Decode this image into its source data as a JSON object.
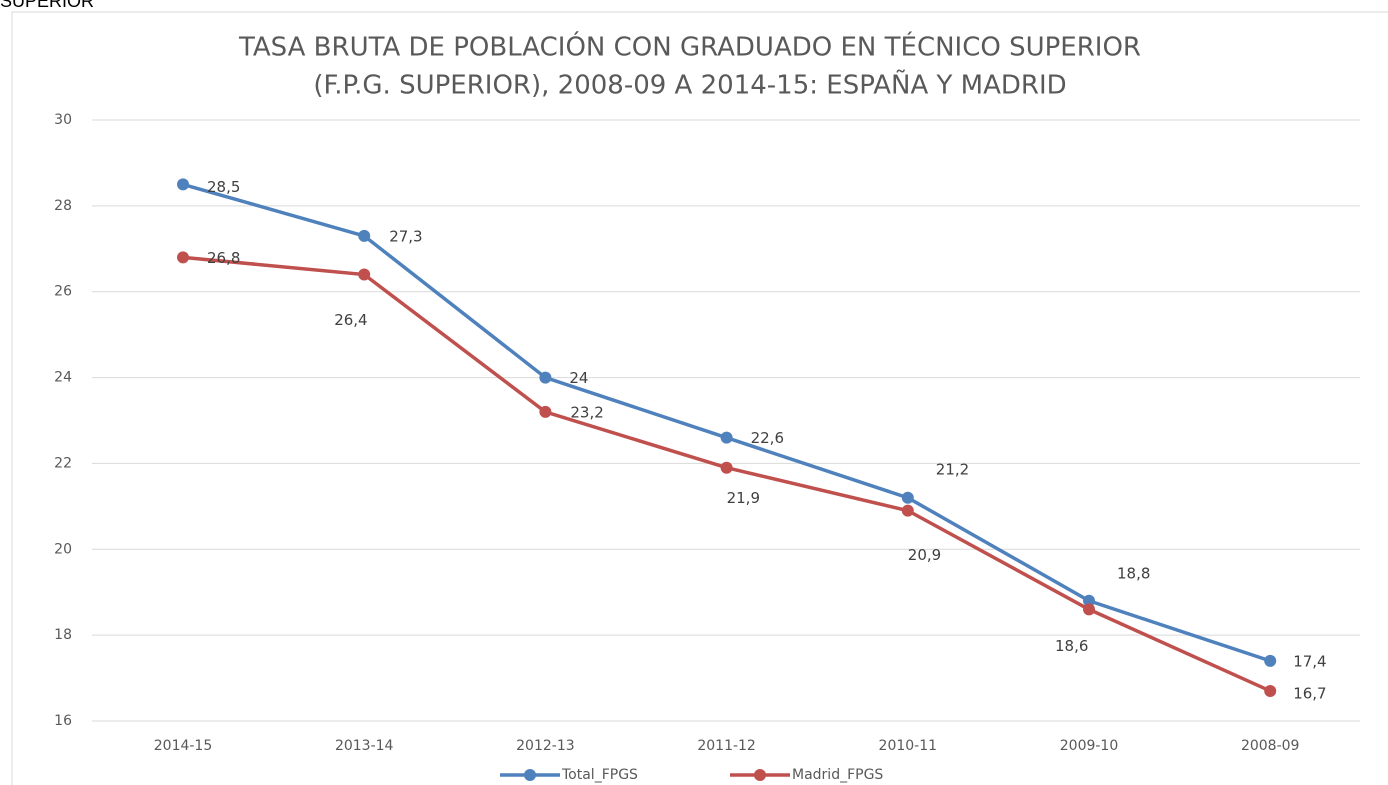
{
  "caption": "SUPERIOR",
  "chart_data": {
    "type": "line",
    "title": [
      "TASA BRUTA DE POBLACIÓN CON GRADUADO EN TÉCNICO SUPERIOR",
      "(F.P.G. SUPERIOR), 2008-09 A 2014-15: ESPAÑA Y MADRID"
    ],
    "categories": [
      "2014-15",
      "2013-14",
      "2012-13",
      "2011-12",
      "2010-11",
      "2009-10",
      "2008-09"
    ],
    "series": [
      {
        "name": "Total_FPGS",
        "color": "#4f81bd",
        "values": [
          28.5,
          27.3,
          24,
          22.6,
          21.2,
          18.8,
          17.4
        ],
        "value_labels": [
          "28,5",
          "27,3",
          "24",
          "22,6",
          "21,2",
          "18,8",
          "17,4"
        ]
      },
      {
        "name": "Madrid_FPGS",
        "color": "#c0504d",
        "values": [
          26.8,
          26.4,
          23.2,
          21.9,
          20.9,
          18.6,
          16.7
        ],
        "value_labels": [
          "26,8",
          "26,4",
          "23,2",
          "21,9",
          "20,9",
          "18,6",
          "16,7"
        ]
      }
    ],
    "ylim": [
      16,
      30
    ],
    "yticks": [
      16,
      18,
      20,
      22,
      24,
      26,
      28,
      30
    ],
    "grid": true,
    "legend": "bottom"
  }
}
